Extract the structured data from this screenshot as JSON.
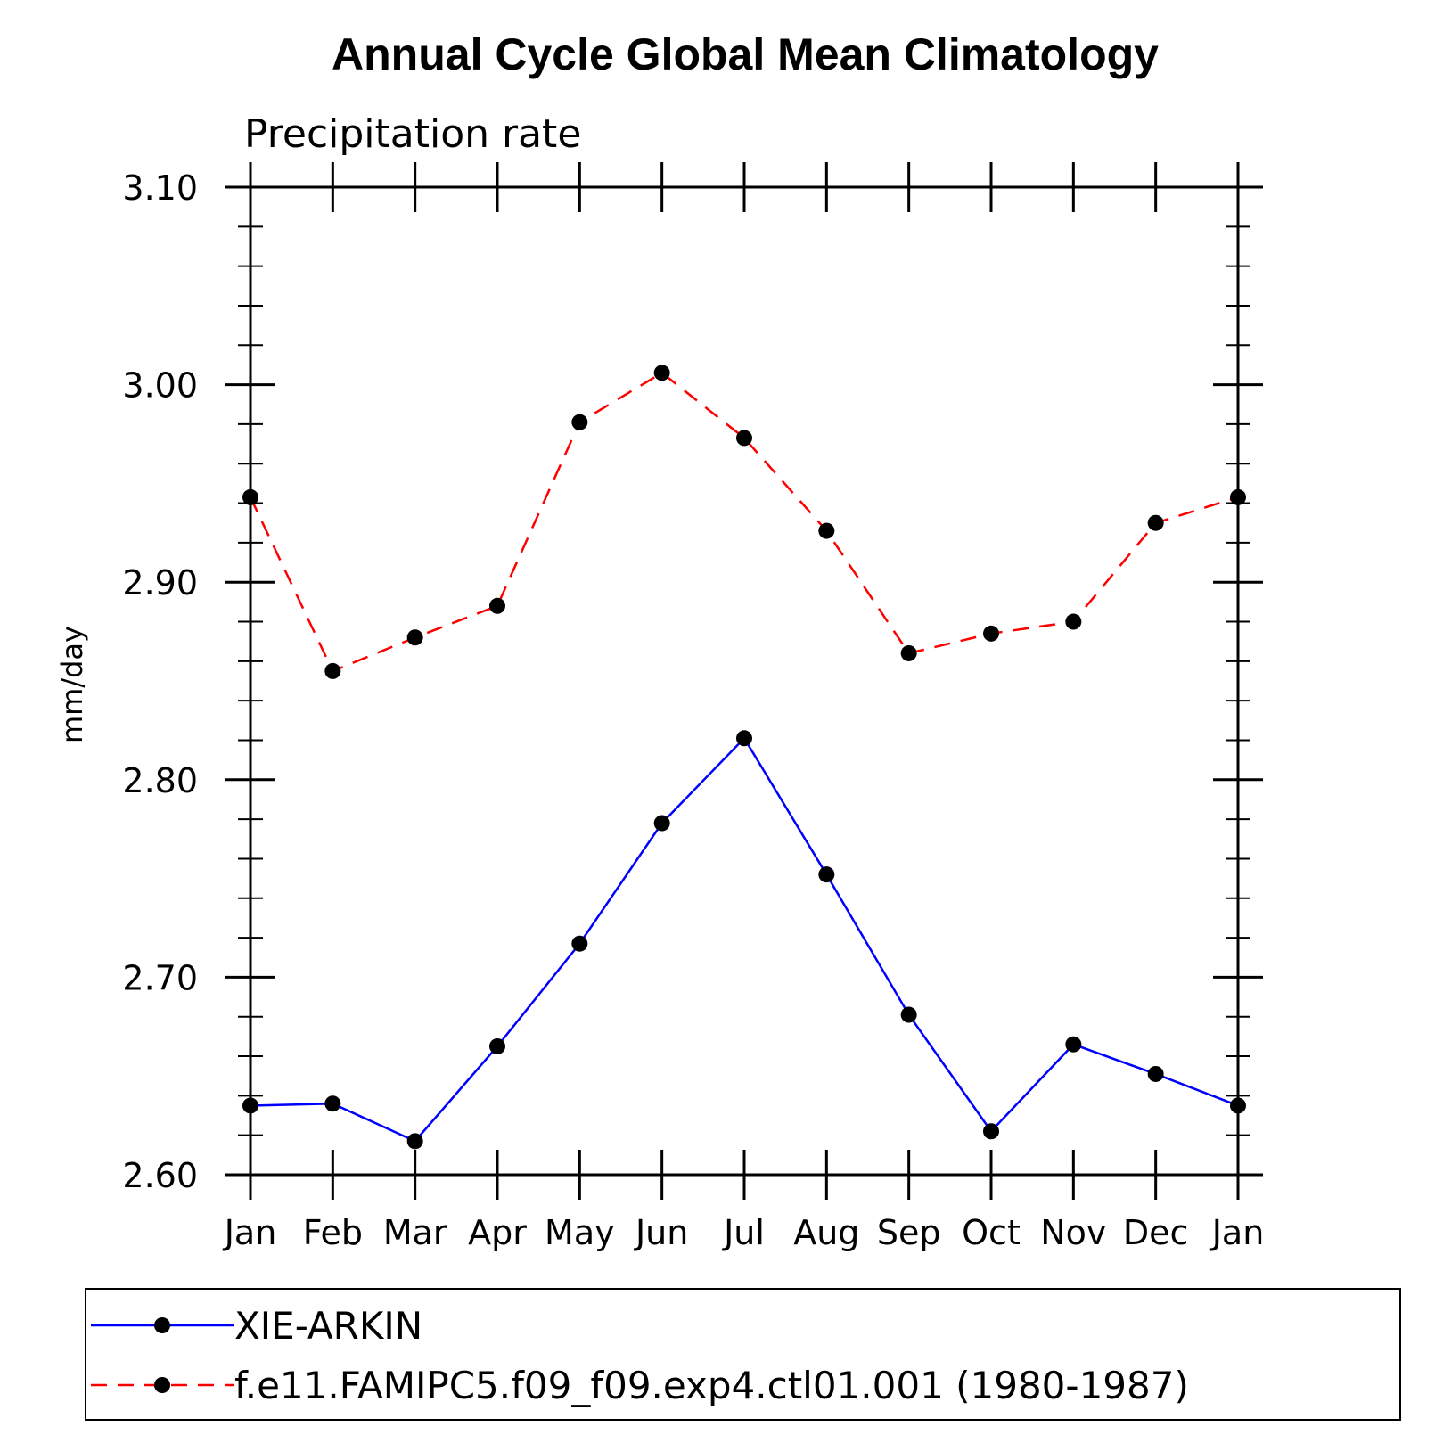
{
  "chart_data": {
    "type": "line",
    "title": "Annual Cycle Global Mean Climatology",
    "subtitle": "Precipitation rate",
    "xlabel": "",
    "ylabel": "mm/day",
    "categories": [
      "Jan",
      "Feb",
      "Mar",
      "Apr",
      "May",
      "Jun",
      "Jul",
      "Aug",
      "Sep",
      "Oct",
      "Nov",
      "Dec",
      "Jan"
    ],
    "yticks": [
      "3.10",
      "3.00",
      "2.90",
      "2.80",
      "2.70",
      "2.60"
    ],
    "ylim": [
      2.6,
      3.1
    ],
    "grid": false,
    "legend_position": "bottom",
    "series": [
      {
        "name": "XIE-ARKIN",
        "color": "#0000ff",
        "line_style": "solid",
        "marker": "filled-circle",
        "values": [
          2.635,
          2.636,
          2.617,
          2.665,
          2.717,
          2.778,
          2.821,
          2.752,
          2.681,
          2.622,
          2.666,
          2.651,
          2.635
        ]
      },
      {
        "name": "f.e11.FAMIPC5.f09_f09.exp4.ctl01.001 (1980-1987)",
        "color": "#ff0000",
        "line_style": "dashed",
        "marker": "filled-circle",
        "values": [
          2.943,
          2.855,
          2.872,
          2.888,
          2.981,
          3.006,
          2.973,
          2.926,
          2.864,
          2.874,
          2.88,
          2.93,
          2.943
        ]
      }
    ]
  }
}
